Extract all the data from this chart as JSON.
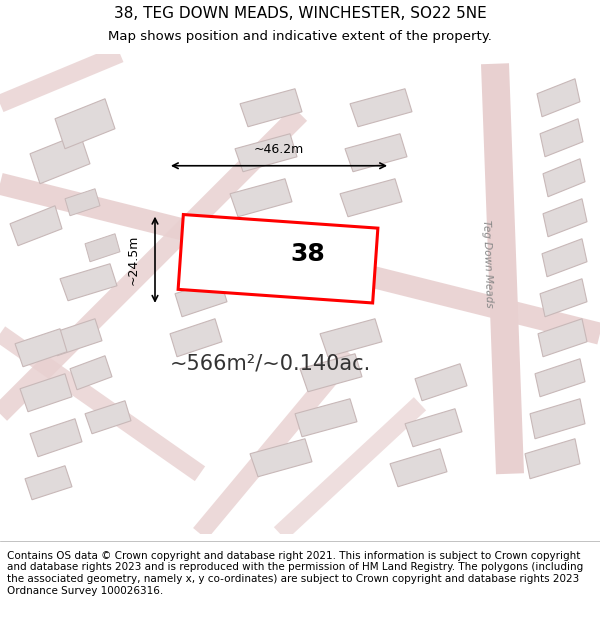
{
  "title": "38, TEG DOWN MEADS, WINCHESTER, SO22 5NE",
  "subtitle": "Map shows position and indicative extent of the property.",
  "footer": "Contains OS data © Crown copyright and database right 2021. This information is subject to Crown copyright and database rights 2023 and is reproduced with the permission of HM Land Registry. The polygons (including the associated geometry, namely x, y co-ordinates) are subject to Crown copyright and database rights 2023 Ordnance Survey 100026316.",
  "area_text": "~566m²/~0.140ac.",
  "width_label": "~46.2m",
  "height_label": "~24.5m",
  "number_label": "38",
  "bg_color": "#f5f5f5",
  "map_bg": "#f0eeee",
  "road_color": "#e8e0e0",
  "building_fill": "#e8e4e4",
  "building_stroke": "#c8b8b8",
  "highlight_fill": "none",
  "highlight_stroke": "#ff0000",
  "road_label": "Teg Down Meads",
  "title_fontsize": 11,
  "subtitle_fontsize": 9.5,
  "footer_fontsize": 7.5
}
